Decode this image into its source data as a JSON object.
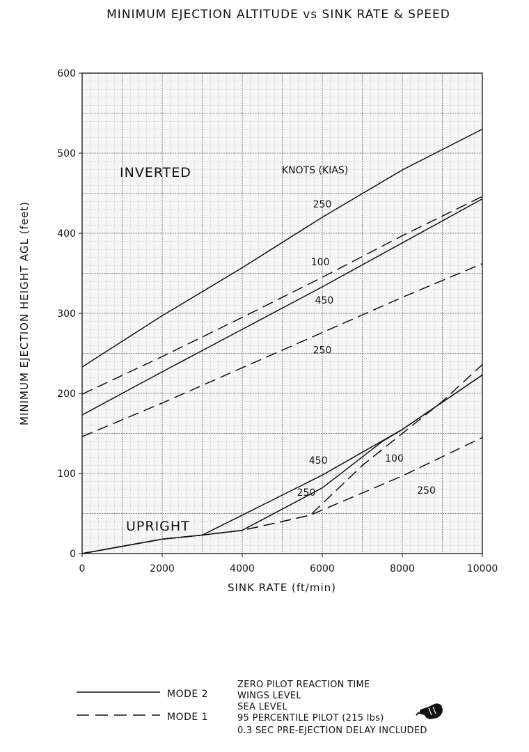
{
  "chart_data": {
    "type": "line",
    "title": "MINIMUM EJECTION ALTITUDE vs SINK RATE & SPEED",
    "xlabel": "SINK RATE (ft/min)",
    "ylabel": "MINIMUM EJECTION HEIGHT AGL (feet)",
    "xlim": [
      0,
      10000
    ],
    "ylim": [
      0,
      600
    ],
    "xticks": [
      0,
      2000,
      4000,
      6000,
      8000,
      10000
    ],
    "yticks": [
      0,
      100,
      200,
      300,
      400,
      500,
      600
    ],
    "grid": true,
    "region_labels": {
      "inverted": "INVERTED",
      "upright": "UPRIGHT",
      "speed_header": "KNOTS (KIAS)"
    },
    "series": [
      {
        "group": "inverted",
        "mode": "MODE 2",
        "speed": "250",
        "points": [
          [
            0,
            233
          ],
          [
            2000,
            297
          ],
          [
            4000,
            357
          ],
          [
            6000,
            420
          ],
          [
            8000,
            479
          ],
          [
            10000,
            530
          ]
        ]
      },
      {
        "group": "inverted",
        "mode": "MODE 1",
        "speed": "100",
        "points": [
          [
            0,
            199
          ],
          [
            2000,
            246
          ],
          [
            4000,
            295
          ],
          [
            6000,
            345
          ],
          [
            8000,
            397
          ],
          [
            10000,
            446
          ]
        ]
      },
      {
        "group": "inverted",
        "mode": "MODE 2",
        "speed": "450",
        "points": [
          [
            0,
            173
          ],
          [
            2000,
            227
          ],
          [
            4000,
            280
          ],
          [
            6000,
            333
          ],
          [
            8000,
            388
          ],
          [
            10000,
            443
          ]
        ]
      },
      {
        "group": "inverted",
        "mode": "MODE 1",
        "speed": "250",
        "points": [
          [
            0,
            146
          ],
          [
            2000,
            188
          ],
          [
            4000,
            232
          ],
          [
            6000,
            276
          ],
          [
            8000,
            320
          ],
          [
            10000,
            362
          ]
        ]
      },
      {
        "group": "upright",
        "mode": "MODE 2",
        "speed": "450",
        "points": [
          [
            0,
            0
          ],
          [
            1000,
            9
          ],
          [
            2000,
            18
          ],
          [
            3000,
            23
          ],
          [
            4000,
            48
          ],
          [
            6000,
            98
          ],
          [
            8000,
            155
          ],
          [
            10000,
            223
          ]
        ]
      },
      {
        "group": "upright",
        "mode": "MODE 2",
        "speed": "250",
        "points": [
          [
            0,
            0
          ],
          [
            1000,
            9
          ],
          [
            2000,
            18
          ],
          [
            3000,
            23
          ],
          [
            4000,
            29
          ],
          [
            6000,
            82
          ],
          [
            7500,
            140
          ],
          [
            8000,
            155
          ],
          [
            10000,
            223
          ]
        ]
      },
      {
        "group": "upright",
        "mode": "MODE 1",
        "speed": "100",
        "points": [
          [
            0,
            0
          ],
          [
            1000,
            9
          ],
          [
            2000,
            18
          ],
          [
            3000,
            23
          ],
          [
            4000,
            29
          ],
          [
            5000,
            40
          ],
          [
            5700,
            48
          ],
          [
            7000,
            110
          ],
          [
            8000,
            150
          ],
          [
            9000,
            190
          ],
          [
            10000,
            236
          ]
        ]
      },
      {
        "group": "upright",
        "mode": "MODE 1",
        "speed": "250",
        "points": [
          [
            0,
            0
          ],
          [
            1000,
            9
          ],
          [
            2000,
            18
          ],
          [
            3000,
            23
          ],
          [
            4000,
            29
          ],
          [
            5000,
            40
          ],
          [
            5700,
            48
          ],
          [
            8000,
            97
          ],
          [
            10000,
            145
          ]
        ]
      }
    ],
    "annotations": [
      {
        "text": "250",
        "x": 6000,
        "y": 432
      },
      {
        "text": "100",
        "x": 5950,
        "y": 360
      },
      {
        "text": "450",
        "x": 6050,
        "y": 312
      },
      {
        "text": "250",
        "x": 6000,
        "y": 250
      },
      {
        "text": "450",
        "x": 5900,
        "y": 112
      },
      {
        "text": "250",
        "x": 5600,
        "y": 72
      },
      {
        "text": "100",
        "x": 7800,
        "y": 115
      },
      {
        "text": "250",
        "x": 8600,
        "y": 75
      }
    ]
  },
  "legend": {
    "solid_label": "MODE 2",
    "dashed_label": "MODE 1",
    "notes": [
      "ZERO PILOT REACTION TIME",
      "WINGS LEVEL",
      "SEA LEVEL",
      "95 PERCENTILE PILOT (215 lbs)",
      "0.3 SEC PRE-EJECTION DELAY INCLUDED"
    ]
  }
}
